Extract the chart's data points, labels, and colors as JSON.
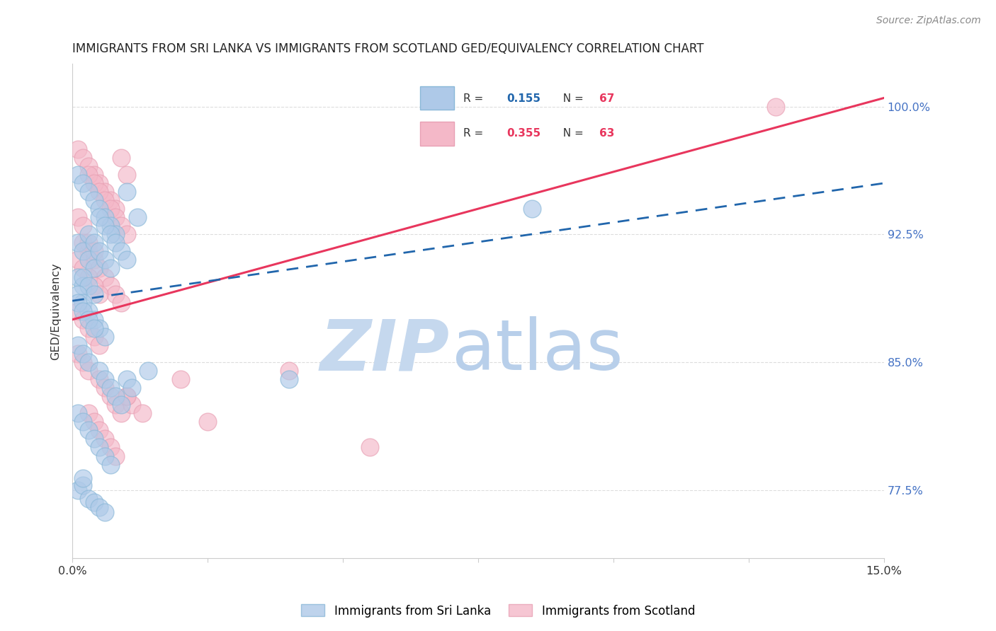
{
  "title": "IMMIGRANTS FROM SRI LANKA VS IMMIGRANTS FROM SCOTLAND GED/EQUIVALENCY CORRELATION CHART",
  "source": "Source: ZipAtlas.com",
  "ylabel": "GED/Equivalency",
  "ytick_labels": [
    "77.5%",
    "85.0%",
    "92.5%",
    "100.0%"
  ],
  "ytick_values": [
    0.775,
    0.85,
    0.925,
    1.0
  ],
  "xmin": 0.0,
  "xmax": 0.15,
  "ymin": 0.735,
  "ymax": 1.025,
  "sri_lanka_color": "#aec9e8",
  "scotland_color": "#f4b8c8",
  "sri_lanka_line_color": "#2166ac",
  "scotland_line_color": "#e8365d",
  "sri_lanka_R": 0.155,
  "sri_lanka_N": 67,
  "scotland_R": 0.355,
  "scotland_N": 63,
  "sri_lanka_x": [
    0.001,
    0.002,
    0.003,
    0.004,
    0.005,
    0.006,
    0.007,
    0.008,
    0.01,
    0.012,
    0.001,
    0.002,
    0.003,
    0.004,
    0.005,
    0.006,
    0.007,
    0.008,
    0.009,
    0.01,
    0.001,
    0.002,
    0.003,
    0.004,
    0.005,
    0.006,
    0.007,
    0.002,
    0.003,
    0.004,
    0.001,
    0.002,
    0.003,
    0.004,
    0.005,
    0.006,
    0.001,
    0.002,
    0.003,
    0.004,
    0.001,
    0.002,
    0.003,
    0.005,
    0.006,
    0.007,
    0.008,
    0.009,
    0.01,
    0.011,
    0.001,
    0.002,
    0.003,
    0.004,
    0.005,
    0.006,
    0.007,
    0.014,
    0.04,
    0.085,
    0.001,
    0.002,
    0.002,
    0.003,
    0.004,
    0.005,
    0.006
  ],
  "sri_lanka_y": [
    0.96,
    0.955,
    0.95,
    0.945,
    0.94,
    0.935,
    0.93,
    0.925,
    0.95,
    0.935,
    0.92,
    0.915,
    0.91,
    0.905,
    0.935,
    0.93,
    0.925,
    0.92,
    0.915,
    0.91,
    0.9,
    0.895,
    0.925,
    0.92,
    0.915,
    0.91,
    0.905,
    0.9,
    0.895,
    0.89,
    0.89,
    0.885,
    0.88,
    0.875,
    0.87,
    0.865,
    0.885,
    0.88,
    0.875,
    0.87,
    0.86,
    0.855,
    0.85,
    0.845,
    0.84,
    0.835,
    0.83,
    0.825,
    0.84,
    0.835,
    0.82,
    0.815,
    0.81,
    0.805,
    0.8,
    0.795,
    0.79,
    0.845,
    0.84,
    0.94,
    0.775,
    0.778,
    0.782,
    0.77,
    0.768,
    0.765,
    0.762
  ],
  "scotland_x": [
    0.001,
    0.002,
    0.003,
    0.004,
    0.005,
    0.006,
    0.007,
    0.008,
    0.009,
    0.01,
    0.001,
    0.002,
    0.003,
    0.004,
    0.005,
    0.006,
    0.007,
    0.008,
    0.009,
    0.01,
    0.002,
    0.003,
    0.004,
    0.005,
    0.006,
    0.007,
    0.008,
    0.009,
    0.003,
    0.004,
    0.001,
    0.002,
    0.003,
    0.004,
    0.005,
    0.001,
    0.002,
    0.003,
    0.004,
    0.005,
    0.001,
    0.002,
    0.003,
    0.005,
    0.006,
    0.007,
    0.008,
    0.009,
    0.01,
    0.011,
    0.003,
    0.004,
    0.005,
    0.006,
    0.007,
    0.008,
    0.013,
    0.025,
    0.04,
    0.055,
    0.01,
    0.02,
    0.13
  ],
  "scotland_y": [
    0.975,
    0.97,
    0.965,
    0.96,
    0.955,
    0.95,
    0.945,
    0.94,
    0.97,
    0.96,
    0.935,
    0.93,
    0.96,
    0.955,
    0.95,
    0.945,
    0.94,
    0.935,
    0.93,
    0.925,
    0.92,
    0.915,
    0.91,
    0.905,
    0.9,
    0.895,
    0.89,
    0.885,
    0.92,
    0.915,
    0.91,
    0.905,
    0.9,
    0.895,
    0.89,
    0.88,
    0.875,
    0.87,
    0.865,
    0.86,
    0.855,
    0.85,
    0.845,
    0.84,
    0.835,
    0.83,
    0.825,
    0.82,
    0.83,
    0.825,
    0.82,
    0.815,
    0.81,
    0.805,
    0.8,
    0.795,
    0.82,
    0.815,
    0.845,
    0.8,
    0.83,
    0.84,
    1.0
  ],
  "watermark_zip": "ZIP",
  "watermark_atlas": "atlas",
  "background_color": "#ffffff",
  "grid_color": "#dddddd"
}
